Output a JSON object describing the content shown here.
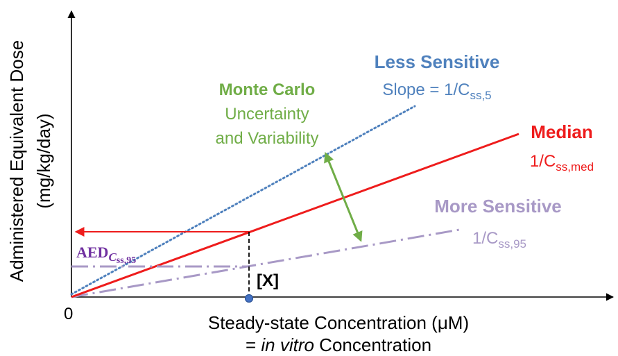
{
  "colors": {
    "axis": "#000000",
    "median": "#ee1c1c",
    "less_sensitive": "#4f81bd",
    "more_sensitive": "#a899c6",
    "monte_carlo": "#70ad47",
    "aed": "#7030a0",
    "point": "#4472c4"
  },
  "axes": {
    "y_label_line1": "Administered Equivalent Dose",
    "y_label_line2": "(mg/kg/day)",
    "origin": "0",
    "x_label_line1": "Steady-state Concentration (μM)",
    "x_label_line2_prefix": "= ",
    "x_label_line2_italic": "in vitro",
    "x_label_line2_suffix": " Concentration"
  },
  "less_sensitive": {
    "title": "Less Sensitive",
    "slope_text": "Slope = 1/C",
    "slope_sub": "ss,5"
  },
  "median": {
    "title": "Median",
    "slope_text": "1/C",
    "slope_sub": "ss,med"
  },
  "more_sensitive": {
    "title": "More Sensitive",
    "slope_text": "1/C",
    "slope_sub": "ss,95"
  },
  "monte_carlo": {
    "title": "Monte Carlo",
    "line2": "Uncertainty",
    "line3": "and Variability"
  },
  "aed_label": {
    "main": "AED",
    "sub": "C",
    "subsub": "ss,95"
  },
  "x_marker": "[X]"
}
